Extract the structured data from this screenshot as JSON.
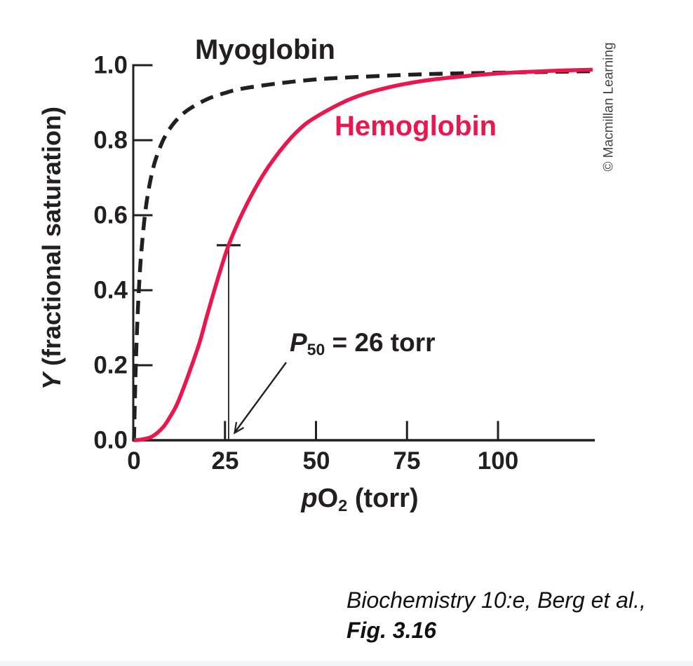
{
  "figure": {
    "credit": "© Macmillan Learning",
    "caption_line1": "Biochemistry 10:e, Berg et al.,",
    "caption_line2": "Fig. 3.16"
  },
  "chart_data": {
    "type": "line",
    "title": "",
    "xlabel": {
      "text": "pO2 (torr)",
      "italic": "p",
      "main": "O",
      "sub": "2",
      "rest": " (torr)"
    },
    "ylabel": {
      "text": "Y (fractional saturation)",
      "italic": "Y",
      "rest": " (fractional saturation)"
    },
    "xlim": [
      0,
      126
    ],
    "ylim": [
      0,
      1.0
    ],
    "grid": false,
    "legend": "inline-labels",
    "x_ticks": [
      0,
      25,
      50,
      75,
      100
    ],
    "x_tick_labels": [
      "0",
      "25",
      "50",
      "75",
      "100"
    ],
    "y_ticks": [
      1.0,
      0.8,
      0.6,
      0.4,
      0.2,
      0.0
    ],
    "y_tick_labels": [
      "1.0",
      "0.8",
      "0.6",
      "0.4",
      "0.2",
      "0.0"
    ],
    "axis_color": "#231f20",
    "series": [
      {
        "name": "Myoglobin",
        "color": "#231f20",
        "line_style": "dashed",
        "description": "hyperbolic oxygen-binding curve",
        "points": [
          [
            0,
            0
          ],
          [
            0.5,
            0.2
          ],
          [
            1,
            0.333
          ],
          [
            1.5,
            0.429
          ],
          [
            2,
            0.5
          ],
          [
            3,
            0.6
          ],
          [
            4,
            0.667
          ],
          [
            5,
            0.714
          ],
          [
            6,
            0.75
          ],
          [
            8,
            0.8
          ],
          [
            10,
            0.833
          ],
          [
            12,
            0.857
          ],
          [
            15,
            0.882
          ],
          [
            20,
            0.909
          ],
          [
            25,
            0.926
          ],
          [
            30,
            0.938
          ],
          [
            40,
            0.952
          ],
          [
            50,
            0.962
          ],
          [
            60,
            0.968
          ],
          [
            80,
            0.976
          ],
          [
            100,
            0.98
          ],
          [
            113,
            0.982
          ],
          [
            126,
            0.984
          ]
        ]
      },
      {
        "name": "Hemoglobin",
        "color": "#e8174e",
        "line_style": "solid",
        "description": "sigmoidal oxygen-binding curve",
        "points": [
          [
            0,
            0
          ],
          [
            2,
            0.002
          ],
          [
            5,
            0.01
          ],
          [
            8,
            0.035
          ],
          [
            10,
            0.064
          ],
          [
            12,
            0.1
          ],
          [
            15,
            0.176
          ],
          [
            18,
            0.26
          ],
          [
            20,
            0.33
          ],
          [
            23,
            0.43
          ],
          [
            26,
            0.52
          ],
          [
            30,
            0.61
          ],
          [
            35,
            0.7
          ],
          [
            40,
            0.77
          ],
          [
            45,
            0.825
          ],
          [
            50,
            0.862
          ],
          [
            60,
            0.912
          ],
          [
            70,
            0.941
          ],
          [
            80,
            0.959
          ],
          [
            90,
            0.97
          ],
          [
            100,
            0.978
          ],
          [
            110,
            0.983
          ],
          [
            118,
            0.986
          ],
          [
            126,
            0.988
          ]
        ]
      }
    ],
    "annotation": {
      "text": "P50 = 26 torr",
      "symbol": "P",
      "sub": "50",
      "rest": " = 26 torr",
      "marker_x": 26,
      "marker_y": 0.52
    }
  }
}
